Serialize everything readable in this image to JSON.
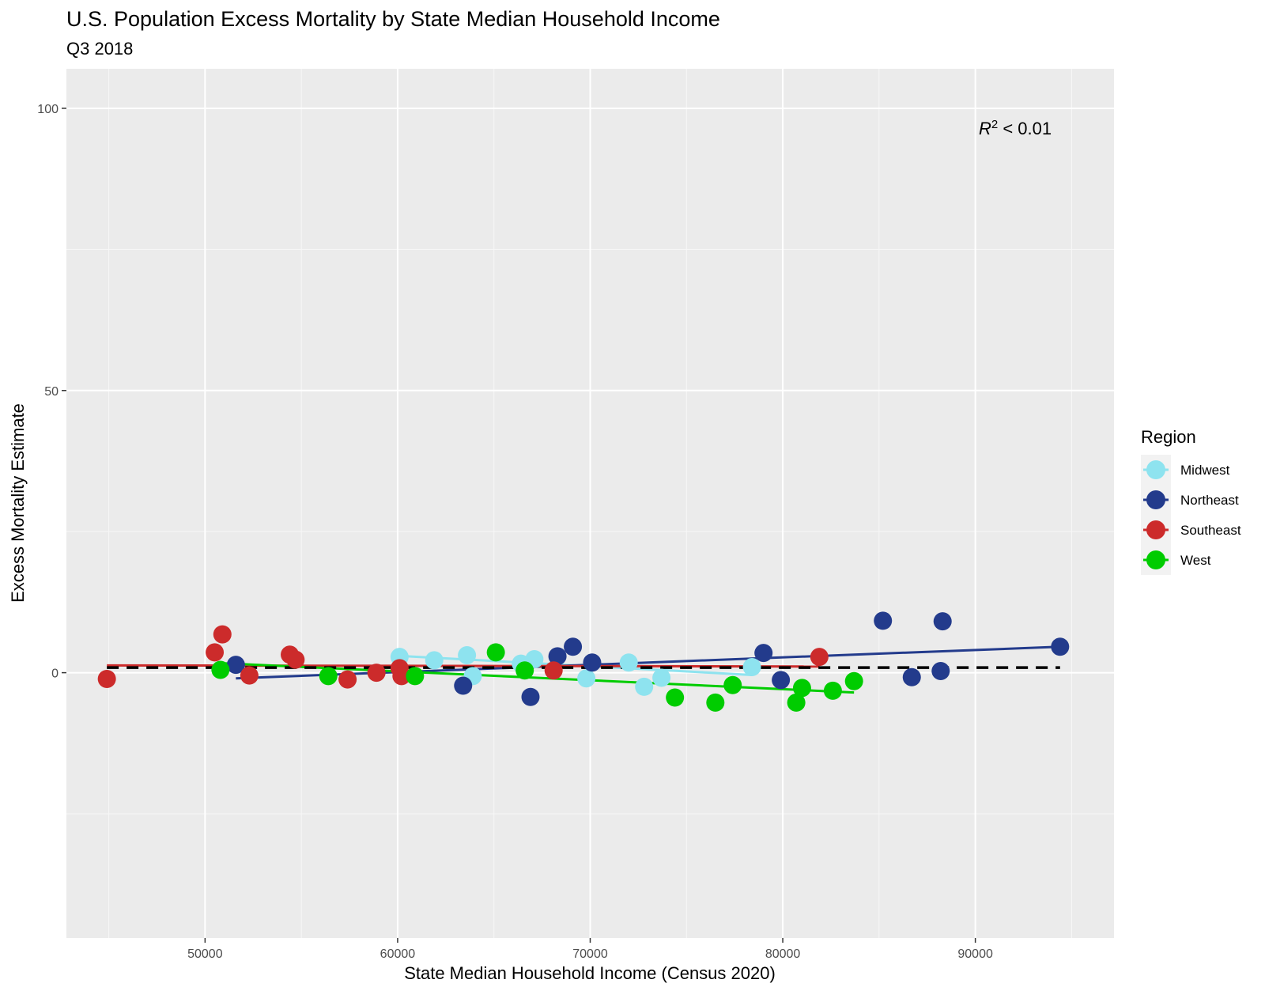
{
  "chart_data": {
    "type": "scatter",
    "title": "U.S. Population Excess Mortality by State Median Household Income",
    "subtitle": "Q3 2018",
    "xlabel": "State Median Household Income (Census 2020)",
    "ylabel": "Excess Mortality Estimate",
    "xlim": [
      42800,
      97200
    ],
    "ylim": [
      -47,
      107
    ],
    "x_ticks": [
      50000,
      60000,
      70000,
      80000,
      90000
    ],
    "x_tick_labels": [
      "50000",
      "60000",
      "70000",
      "80000",
      "90000"
    ],
    "y_ticks": [
      0,
      50,
      100
    ],
    "y_tick_labels": [
      "0",
      "50",
      "100"
    ],
    "grid": true,
    "annotation": {
      "base": "R",
      "sup": "2",
      "rest": " < 0.01"
    },
    "legend": {
      "title": "Region",
      "position": "right"
    },
    "reference_line": {
      "style": "dashed",
      "color": "#000000",
      "y_start": 0.9,
      "y_end": 0.9
    },
    "series": [
      {
        "name": "Midwest",
        "color": "#8ee3ef",
        "points": [
          {
            "x": 60100,
            "y": 2.8
          },
          {
            "x": 61900,
            "y": 2.2
          },
          {
            "x": 63600,
            "y": 3.1
          },
          {
            "x": 63900,
            "y": -0.6
          },
          {
            "x": 66400,
            "y": 1.6
          },
          {
            "x": 67100,
            "y": 2.4
          },
          {
            "x": 69800,
            "y": -1.0
          },
          {
            "x": 72000,
            "y": 1.8
          },
          {
            "x": 72800,
            "y": -2.5
          },
          {
            "x": 73700,
            "y": -0.9
          },
          {
            "x": 78400,
            "y": 1.0
          }
        ],
        "trend": {
          "x1": 60000,
          "y1": 3.0,
          "x2": 78400,
          "y2": -0.4
        }
      },
      {
        "name": "Northeast",
        "color": "#233b8c",
        "points": [
          {
            "x": 51600,
            "y": 1.4
          },
          {
            "x": 63400,
            "y": -2.3
          },
          {
            "x": 66900,
            "y": -4.3
          },
          {
            "x": 68300,
            "y": 2.9
          },
          {
            "x": 69100,
            "y": 4.6
          },
          {
            "x": 70100,
            "y": 1.8
          },
          {
            "x": 79000,
            "y": 3.5
          },
          {
            "x": 79900,
            "y": -1.3
          },
          {
            "x": 85200,
            "y": 9.2
          },
          {
            "x": 86700,
            "y": -0.8
          },
          {
            "x": 88200,
            "y": 0.3
          },
          {
            "x": 88300,
            "y": 9.1
          },
          {
            "x": 94400,
            "y": 4.6
          }
        ],
        "trend": {
          "x1": 51600,
          "y1": -1.0,
          "x2": 94400,
          "y2": 4.6
        }
      },
      {
        "name": "Southeast",
        "color": "#cc2b2b",
        "points": [
          {
            "x": 44900,
            "y": -1.1
          },
          {
            "x": 50500,
            "y": 3.6
          },
          {
            "x": 50900,
            "y": 6.8
          },
          {
            "x": 52300,
            "y": -0.5
          },
          {
            "x": 54400,
            "y": 3.2
          },
          {
            "x": 54700,
            "y": 2.3
          },
          {
            "x": 57400,
            "y": -1.2
          },
          {
            "x": 58900,
            "y": 0.0
          },
          {
            "x": 60100,
            "y": 0.8
          },
          {
            "x": 60200,
            "y": -0.6
          },
          {
            "x": 68100,
            "y": 0.4
          },
          {
            "x": 81900,
            "y": 2.8
          }
        ],
        "trend": {
          "x1": 44900,
          "y1": 1.3,
          "x2": 81900,
          "y2": 1.1
        }
      },
      {
        "name": "West",
        "color": "#00cc00",
        "points": [
          {
            "x": 50800,
            "y": 0.5
          },
          {
            "x": 56400,
            "y": -0.6
          },
          {
            "x": 60900,
            "y": -0.6
          },
          {
            "x": 65100,
            "y": 3.6
          },
          {
            "x": 66600,
            "y": 0.4
          },
          {
            "x": 74400,
            "y": -4.4
          },
          {
            "x": 76500,
            "y": -5.3
          },
          {
            "x": 77400,
            "y": -2.2
          },
          {
            "x": 80700,
            "y": -5.3
          },
          {
            "x": 81000,
            "y": -2.7
          },
          {
            "x": 82600,
            "y": -3.2
          },
          {
            "x": 83700,
            "y": -1.5
          }
        ],
        "trend": {
          "x1": 50800,
          "y1": 1.7,
          "x2": 83700,
          "y2": -3.5
        }
      }
    ]
  }
}
